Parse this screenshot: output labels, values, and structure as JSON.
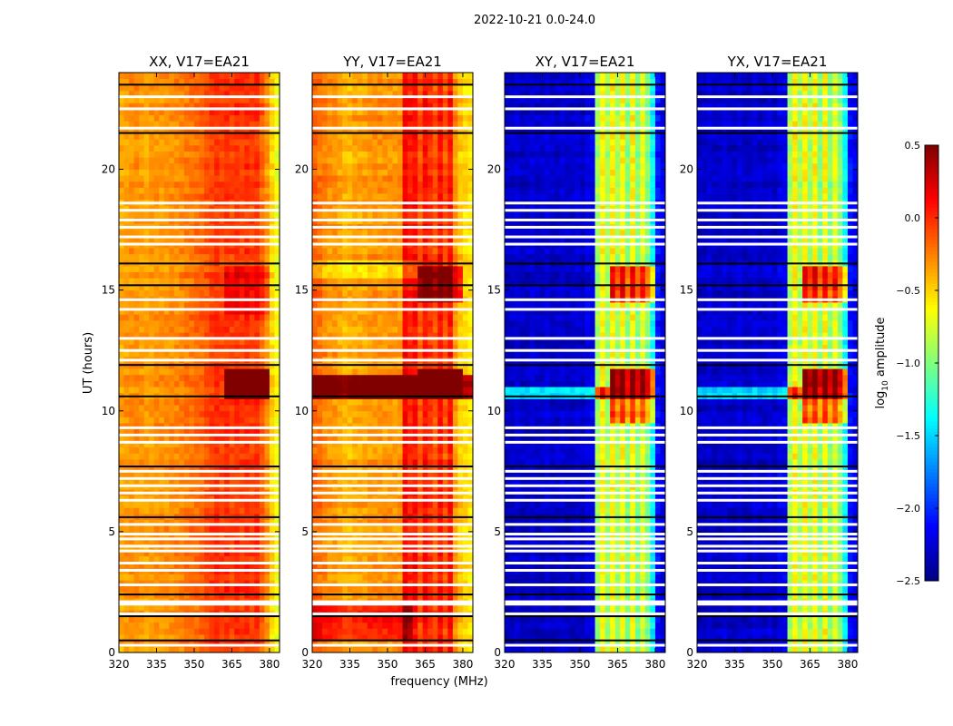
{
  "chart_data": {
    "type": "heatmap",
    "title": "2022-10-21 0.0-24.0",
    "xlabel": "frequency (MHz)",
    "ylabel": "UT (hours)",
    "xlim": [
      320,
      384
    ],
    "ylim": [
      0,
      24
    ],
    "xticks": [
      "320",
      "335",
      "350",
      "365",
      "380"
    ],
    "xtick_values": [
      320,
      335,
      350,
      365,
      380
    ],
    "yticks": [
      "0",
      "5",
      "10",
      "15",
      "20"
    ],
    "ytick_values": [
      0,
      5,
      10,
      15,
      20
    ],
    "colorbar": {
      "label": "log10 amplitude",
      "label_main": "log",
      "label_sub": "10",
      "label_rest": " amplitude",
      "range": [
        -2.5,
        0.5
      ],
      "ticks": [
        "0.5",
        "0.0",
        "−0.5",
        "−1.0",
        "−1.5",
        "−2.0",
        "−2.5"
      ],
      "tick_values": [
        0.5,
        0.0,
        -0.5,
        -1.0,
        -1.5,
        -2.0,
        -2.5
      ],
      "colormap": "jet"
    },
    "freq_bin_MHz": 2,
    "time_bin_hours": 0.25,
    "panels": [
      {
        "title": "XX, V17=EA21",
        "freq_profile": [
          -0.35,
          -0.33,
          -0.3,
          -0.3,
          -0.32,
          -0.35,
          -0.33,
          -0.3,
          -0.3,
          -0.3,
          -0.28,
          -0.27,
          -0.25,
          -0.22,
          -0.2,
          -0.18,
          -0.15,
          -0.1,
          -0.05,
          0.0,
          -0.05,
          0.0,
          -0.05,
          0.0,
          -0.05,
          0.0,
          -0.05,
          0.0,
          -0.15,
          -0.3,
          -0.5,
          -0.65
        ]
      },
      {
        "title": "YY, V17=EA21",
        "freq_profile": [
          -0.15,
          -0.2,
          -0.25,
          -0.3,
          -0.3,
          -0.35,
          -0.4,
          -0.4,
          -0.35,
          -0.35,
          -0.35,
          -0.3,
          -0.3,
          -0.3,
          -0.3,
          -0.3,
          -0.3,
          -0.3,
          0.15,
          0.05,
          0.1,
          -0.1,
          0.1,
          0.0,
          -0.1,
          0.1,
          -0.1,
          0.1,
          -0.3,
          -0.45,
          -0.5,
          -0.55
        ]
      },
      {
        "title": "XY, V17=EA21",
        "freq_profile": [
          -2.3,
          -2.3,
          -2.25,
          -2.3,
          -2.3,
          -2.25,
          -2.3,
          -2.3,
          -2.25,
          -2.3,
          -2.3,
          -2.25,
          -2.3,
          -2.3,
          -2.25,
          -2.3,
          -2.2,
          -2.2,
          -0.9,
          -0.6,
          -0.9,
          -0.6,
          -0.9,
          -0.6,
          -1.0,
          -0.6,
          -1.0,
          -0.7,
          -1.0,
          -1.4,
          -2.1,
          -2.2
        ]
      },
      {
        "title": "YX, V17=EA21",
        "freq_profile": [
          -2.3,
          -2.3,
          -2.25,
          -2.3,
          -2.3,
          -2.25,
          -2.3,
          -2.3,
          -2.25,
          -2.3,
          -2.3,
          -2.25,
          -2.3,
          -2.3,
          -2.25,
          -2.3,
          -2.2,
          -2.2,
          -0.9,
          -0.6,
          -0.9,
          -0.6,
          -0.9,
          -0.6,
          -1.0,
          -0.6,
          -1.0,
          -0.7,
          -1.0,
          -1.4,
          -2.1,
          -2.2
        ]
      }
    ],
    "events": [
      {
        "panels": [
          0,
          1,
          2,
          3
        ],
        "t": [
          10.3,
          11.7
        ],
        "f": [
          362,
          380
        ],
        "delta": 1.2
      },
      {
        "panels": [
          1
        ],
        "t": [
          10.4,
          11.3
        ],
        "f": [
          320,
          384
        ],
        "delta": 0.9
      },
      {
        "panels": [
          2,
          3
        ],
        "t": [
          10.5,
          11.0
        ],
        "f": [
          320,
          362
        ],
        "delta": 0.8
      },
      {
        "panels": [
          2,
          3
        ],
        "t": [
          14.4,
          16.0
        ],
        "f": [
          362,
          380
        ],
        "delta": 0.8
      },
      {
        "panels": [
          1
        ],
        "t": [
          14.3,
          16.0
        ],
        "f": [
          362,
          380
        ],
        "delta": 0.5
      },
      {
        "panels": [
          2,
          3
        ],
        "t": [
          9.5,
          10.3
        ],
        "f": [
          362,
          380
        ],
        "delta": 0.6
      },
      {
        "panels": [
          0
        ],
        "t": [
          14.0,
          16.0
        ],
        "f": [
          362,
          380
        ],
        "delta": 0.2
      },
      {
        "panels": [
          1
        ],
        "t": [
          0.5,
          2.0
        ],
        "f": [
          320,
          360
        ],
        "delta": 0.35
      },
      {
        "panels": [
          1
        ],
        "t": [
          15.5,
          16.2
        ],
        "f": [
          320,
          362
        ],
        "delta": -0.25
      }
    ],
    "flag_white_hours": [
      23.0,
      22.5,
      21.7,
      18.6,
      18.3,
      17.9,
      17.6,
      17.2,
      16.9,
      14.6,
      14.2,
      13.0,
      12.5,
      12.1,
      9.3,
      9.0,
      8.7,
      7.5,
      7.2,
      6.9,
      6.6,
      6.3,
      5.3,
      4.9,
      4.7,
      4.4,
      4.2,
      3.7,
      3.4,
      2.8,
      2.1,
      2.0,
      1.6,
      0.3
    ],
    "flag_black_hours": [
      23.5,
      21.5,
      16.1,
      15.2,
      11.9,
      10.6,
      7.7,
      5.6,
      2.4,
      1.5,
      0.5
    ]
  }
}
